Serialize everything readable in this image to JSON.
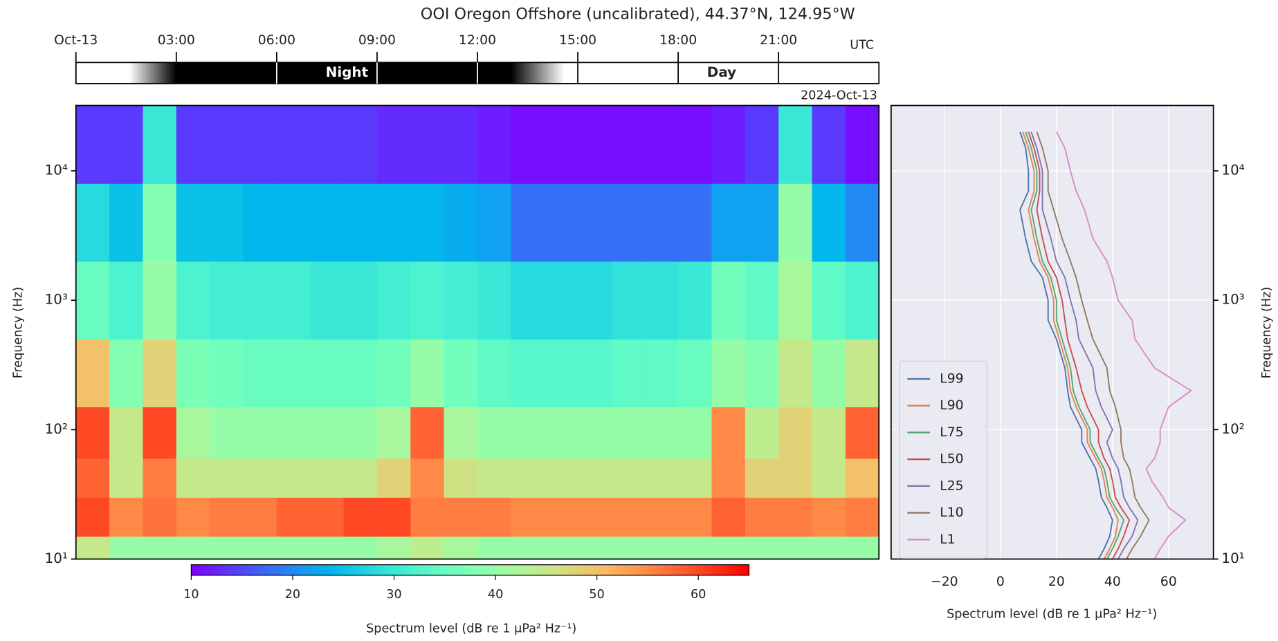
{
  "chart_data": [
    {
      "type": "heatmap",
      "title": "OOI Oregon Offshore (uncalibrated), 44.37°N, 124.95°W",
      "ylabel": "Frequency (Hz)",
      "time_label": "UTC",
      "date_label": "2024-Oct-13",
      "night_label": "Night",
      "day_label": "Day",
      "twilight": [
        1.6,
        3,
        13,
        14.6
      ],
      "xlim": [
        0,
        24
      ],
      "xticks": [
        {
          "value": 0,
          "label": "Oct-13"
        },
        {
          "value": 3,
          "label": "03:00"
        },
        {
          "value": 6,
          "label": "06:00"
        },
        {
          "value": 9,
          "label": "09:00"
        },
        {
          "value": 12,
          "label": "12:00"
        },
        {
          "value": 15,
          "label": "15:00"
        },
        {
          "value": 18,
          "label": "18:00"
        },
        {
          "value": 21,
          "label": "21:00"
        }
      ],
      "ylim": [
        10,
        32000
      ],
      "log_y": true,
      "yticks": [
        {
          "value": 10,
          "label": "10¹"
        },
        {
          "value": 100,
          "label": "10²"
        },
        {
          "value": 1000,
          "label": "10³"
        },
        {
          "value": 10000,
          "label": "10⁴"
        }
      ],
      "x_edges": [
        0,
        1,
        2,
        3,
        4,
        5,
        6,
        7,
        8,
        9,
        10,
        11,
        12,
        13,
        14,
        15,
        16,
        17,
        18,
        19,
        20,
        21,
        22,
        23,
        24
      ],
      "y_edges": [
        10,
        15,
        30,
        60,
        150,
        500,
        2000,
        8000,
        32000
      ],
      "values": [
        [
          45,
          40,
          40,
          40,
          40,
          40,
          40,
          40,
          40,
          42,
          44,
          42,
          40,
          40,
          40,
          40,
          40,
          40,
          40,
          40,
          40,
          40,
          40,
          40
        ],
        [
          60,
          55,
          57,
          55,
          56,
          56,
          58,
          58,
          60,
          60,
          56,
          56,
          56,
          55,
          55,
          55,
          55,
          55,
          55,
          58,
          56,
          56,
          55,
          56
        ],
        [
          58,
          45,
          56,
          45,
          45,
          45,
          45,
          45,
          45,
          48,
          55,
          46,
          45,
          45,
          45,
          45,
          45,
          45,
          45,
          55,
          48,
          48,
          45,
          50
        ],
        [
          60,
          45,
          60,
          42,
          40,
          40,
          40,
          40,
          40,
          42,
          58,
          42,
          40,
          40,
          40,
          40,
          40,
          40,
          40,
          55,
          44,
          48,
          45,
          58
        ],
        [
          50,
          38,
          48,
          37,
          36,
          35,
          35,
          35,
          35,
          36,
          40,
          36,
          34,
          33,
          33,
          33,
          34,
          34,
          35,
          40,
          38,
          45,
          40,
          45
        ],
        [
          35,
          32,
          40,
          32,
          31,
          31,
          31,
          30,
          30,
          31,
          32,
          31,
          30,
          28,
          28,
          28,
          29,
          29,
          30,
          36,
          34,
          42,
          34,
          32
        ],
        [
          28,
          25,
          38,
          25,
          25,
          24,
          24,
          24,
          24,
          24,
          24,
          23,
          22,
          18,
          18,
          18,
          18,
          18,
          18,
          22,
          22,
          40,
          24,
          20
        ],
        [
          14,
          14,
          30,
          14,
          14,
          14,
          14,
          14,
          14,
          13,
          13,
          13,
          12,
          11,
          11,
          11,
          11,
          11,
          11,
          12,
          14,
          30,
          14,
          11
        ]
      ],
      "colormap": "rainbow",
      "clim": [
        10,
        65
      ],
      "cticks": [
        10,
        20,
        30,
        40,
        50,
        60
      ],
      "colorbar_label": "Spectrum level (dB re 1 μPa² Hz⁻¹)"
    },
    {
      "type": "line",
      "xlabel": "Spectrum level (dB re 1 μPa² Hz⁻¹)",
      "ylabel": "Frequency (Hz)",
      "xlim": [
        -39,
        76
      ],
      "xticks": [
        {
          "value": -20,
          "label": "−20"
        },
        0,
        20,
        40,
        60
      ],
      "ylim": [
        10,
        32000
      ],
      "log_y": true,
      "yticks": [
        {
          "value": 10,
          "label": "10¹"
        },
        {
          "value": 100,
          "label": "10²"
        },
        {
          "value": 1000,
          "label": "10³"
        },
        {
          "value": 10000,
          "label": "10⁴"
        }
      ],
      "grid": true,
      "legend": "lower left",
      "y": [
        10,
        12,
        15,
        20,
        25,
        30,
        40,
        50,
        60,
        80,
        100,
        150,
        200,
        300,
        500,
        700,
        1000,
        1500,
        2000,
        3000,
        5000,
        7000,
        10000,
        15000,
        20000
      ],
      "series": [
        {
          "name": "L99",
          "color": "#4c72b0",
          "values": [
            35,
            37,
            39,
            40,
            38,
            36,
            35,
            34,
            32,
            29,
            29,
            25,
            24,
            23,
            20,
            17,
            17,
            15,
            11,
            9,
            7,
            10,
            10,
            9,
            7
          ]
        },
        {
          "name": "L90",
          "color": "#dd8452",
          "values": [
            37,
            39,
            41,
            42,
            40,
            38,
            37,
            36,
            34,
            31,
            31,
            27,
            25,
            24,
            21,
            19,
            19,
            17,
            14,
            12,
            10,
            12,
            12,
            10,
            8
          ]
        },
        {
          "name": "L75",
          "color": "#55a868",
          "values": [
            38,
            40,
            42,
            44,
            41,
            39,
            38,
            37,
            35,
            32,
            32,
            28,
            26,
            25,
            22,
            20,
            20,
            18,
            15,
            13,
            11,
            13,
            13,
            11,
            9
          ]
        },
        {
          "name": "L50",
          "color": "#c44e52",
          "values": [
            40,
            42,
            44,
            46,
            43,
            41,
            40,
            39,
            37,
            35,
            35,
            31,
            29,
            27,
            24,
            23,
            22,
            20,
            17,
            15,
            13,
            14,
            14,
            12,
            10
          ]
        },
        {
          "name": "L25",
          "color": "#8172b3",
          "values": [
            42,
            44,
            47,
            49,
            46,
            44,
            43,
            42,
            40,
            38,
            40,
            36,
            34,
            33,
            28,
            27,
            25,
            23,
            20,
            18,
            15,
            15,
            15,
            13,
            11
          ]
        },
        {
          "name": "L10",
          "color": "#937860",
          "values": [
            45,
            47,
            50,
            53,
            50,
            48,
            47,
            46,
            44,
            43,
            43,
            41,
            39,
            38,
            33,
            31,
            29,
            27,
            25,
            22,
            19,
            17,
            17,
            15,
            13
          ]
        },
        {
          "name": "L1",
          "color": "#da8bc3",
          "values": [
            55,
            57,
            60,
            66,
            60,
            58,
            54,
            52,
            55,
            57,
            57,
            60,
            68,
            55,
            48,
            47,
            42,
            40,
            38,
            33,
            30,
            27,
            25,
            23,
            20
          ]
        }
      ]
    }
  ]
}
